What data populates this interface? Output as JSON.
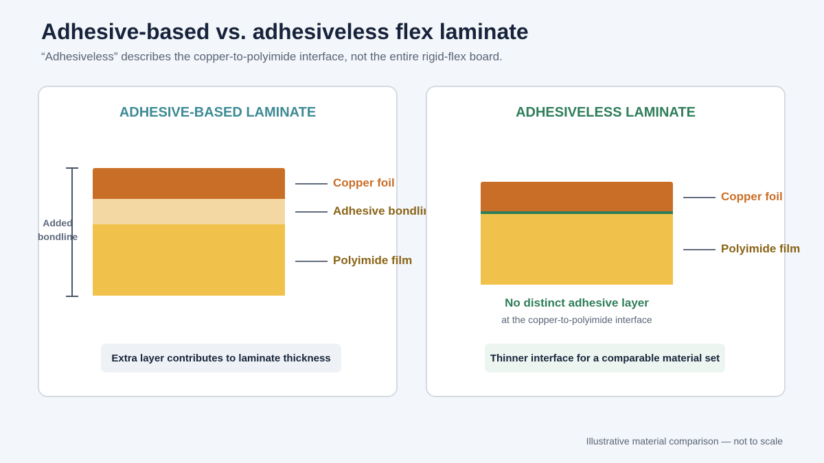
{
  "header": {
    "title": "Adhesive-based vs. adhesiveless flex laminate",
    "subtitle": "“Adhesiveless” describes the copper-to-polyimide interface, not the entire rigid-flex board."
  },
  "left_panel": {
    "title": "ADHESIVE-BASED LAMINATE",
    "labels": {
      "copper": "Copper foil",
      "adhesive": "Adhesive bondline",
      "polyimide": "Polyimide film"
    },
    "bracket_label_line1": "Added",
    "bracket_label_line2": "bondline",
    "note": "Extra layer contributes to laminate thickness"
  },
  "right_panel": {
    "title": "ADHESIVELESS LAMINATE",
    "labels": {
      "copper": "Copper foil",
      "polyimide": "Polyimide film"
    },
    "interface_title": "No distinct adhesive layer",
    "interface_subtitle": "at the copper-to-polyimide interface",
    "note": "Thinner interface for a comparable material set"
  },
  "footer": "Illustrative material comparison — not to scale",
  "colors": {
    "copper": "#c96e27",
    "adhesive": "#f4d8a4",
    "polyimide": "#f0c24b",
    "interface": "#2e7d59",
    "teal_title": "#3d8a95",
    "green_title": "#2e7d59"
  }
}
